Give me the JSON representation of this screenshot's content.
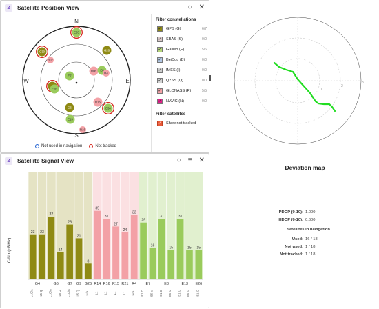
{
  "position_view": {
    "title": "Satellite Position View",
    "badge": "2",
    "compass": {
      "n": "N",
      "e": "E",
      "s": "S",
      "w": "W"
    },
    "legend": {
      "not_used": "Not used in navigation",
      "not_tracked": "Not tracked"
    },
    "satellites": [
      {
        "id": "E33",
        "type": "gal"
      },
      {
        "id": "G30",
        "type": "gps"
      },
      {
        "id": "G28",
        "type": "gps"
      },
      {
        "id": "R07",
        "type": "glo"
      },
      {
        "id": "R06",
        "type": "glo"
      },
      {
        "id": "E7",
        "type": "gal"
      },
      {
        "id": "E8",
        "type": "gal"
      },
      {
        "id": "R4",
        "type": "glo"
      },
      {
        "id": "G",
        "type": "gps"
      },
      {
        "id": "E26",
        "type": "gal"
      },
      {
        "id": "R15",
        "type": "glo"
      },
      {
        "id": "G6",
        "type": "gps"
      },
      {
        "id": "E30",
        "type": "gal"
      },
      {
        "id": "E13",
        "type": "gal"
      },
      {
        "id": "R16",
        "type": "glo"
      }
    ]
  },
  "filters": {
    "constellations_title": "Filter constellations",
    "items": [
      {
        "label": "GPS (G)",
        "count": "6/7",
        "color": "#8f8a14",
        "checked": true
      },
      {
        "label": "SBAS (S)",
        "count": "0/0",
        "color": "#d9c8c8",
        "checked": true
      },
      {
        "label": "Galileo (E)",
        "count": "5/6",
        "color": "#b6d67a",
        "checked": true
      },
      {
        "label": "BeiDou (B)",
        "count": "0/0",
        "color": "#b3c9e6",
        "checked": true
      },
      {
        "label": "IMES (I)",
        "count": "0/0",
        "color": "#cfcfcf",
        "checked": true
      },
      {
        "label": "QZSS (Q)",
        "count": "0/0",
        "color": "#d4d4d4",
        "checked": true
      },
      {
        "label": "GLONASS (R)",
        "count": "5/5",
        "color": "#f4a3a8",
        "checked": true
      },
      {
        "label": "NAVIC (N)",
        "count": "0/0",
        "color": "#e0218a",
        "checked": true
      }
    ],
    "satellites_title": "Filter satellites",
    "show_not_tracked": "Show not tracked"
  },
  "signal_view": {
    "title": "Satellite Signal View",
    "badge": "2",
    "ylabel": "C/No (dBHz)"
  },
  "chart_data": {
    "type": "bar",
    "ylim": [
      0,
      55
    ],
    "ylabel": "C/No (dBHz)",
    "groups": [
      {
        "name": "G4",
        "color": "gps"
      },
      {
        "name": "G6",
        "color": "gps"
      },
      {
        "name": "G7",
        "color": "gps"
      },
      {
        "name": "G9",
        "color": "gps"
      },
      {
        "name": "G26",
        "color": "gps"
      },
      {
        "name": "R14",
        "color": "glo"
      },
      {
        "name": "R16",
        "color": "glo"
      },
      {
        "name": "R15",
        "color": "glo"
      },
      {
        "name": "R21",
        "color": "glo"
      },
      {
        "name": "R4",
        "color": "glo"
      },
      {
        "name": "E7",
        "color": "gal"
      },
      {
        "name": "E8",
        "color": "gal"
      },
      {
        "name": "E13",
        "color": "gal"
      },
      {
        "name": "E26",
        "color": "gal"
      }
    ],
    "bars": [
      {
        "value": 23,
        "signal": "L1C/A",
        "group": "G4",
        "type": "gps"
      },
      {
        "value": 23,
        "signal": "L5 Q",
        "group": "G4",
        "type": "gps"
      },
      {
        "value": 32,
        "signal": "L1C/A",
        "group": "G6",
        "type": "gps"
      },
      {
        "value": 14,
        "signal": "L5 Q",
        "group": "G6",
        "type": "gps"
      },
      {
        "value": 28,
        "signal": "L1C/A",
        "group": "G7",
        "type": "gps"
      },
      {
        "value": 21,
        "signal": "L5 Q",
        "group": "G9",
        "type": "gps"
      },
      {
        "value": 8,
        "signal": "N/A",
        "group": "G26",
        "type": "gps"
      },
      {
        "value": 35,
        "signal": "L1",
        "group": "R14",
        "type": "glo"
      },
      {
        "value": 31,
        "signal": "L1",
        "group": "R16",
        "type": "glo"
      },
      {
        "value": 27,
        "signal": "L1",
        "group": "R15",
        "type": "glo"
      },
      {
        "value": 24,
        "signal": "L1",
        "group": "R21",
        "type": "glo"
      },
      {
        "value": 33,
        "signal": "N/A",
        "group": "R4",
        "type": "glo"
      },
      {
        "value": 29,
        "signal": "E1 C",
        "group": "E7",
        "type": "gal"
      },
      {
        "value": 16,
        "signal": "E5 aI",
        "group": "E7",
        "type": "gal"
      },
      {
        "value": 31,
        "signal": "E1 C",
        "group": "E8",
        "type": "gal"
      },
      {
        "value": 15,
        "signal": "E5 aI",
        "group": "E8",
        "type": "gal"
      },
      {
        "value": 31,
        "signal": "E1 C",
        "group": "E13",
        "type": "gal"
      },
      {
        "value": 15,
        "signal": "E5 aI",
        "group": "E13",
        "type": "gal"
      },
      {
        "value": 15,
        "signal": "E1 C",
        "group": "E26",
        "type": "gal"
      }
    ]
  },
  "deviation": {
    "title": "Deviation map",
    "ring_labels": [
      "1",
      "2",
      "3"
    ]
  },
  "stats": {
    "pdop_label": "PDOP (0-10):",
    "pdop": "1.000",
    "hdop_label": "HDOP (0-10):",
    "hdop": "0.600",
    "nav_title": "Satellites in navigation",
    "used_label": "Used:",
    "used": "16 / 18",
    "not_used_label": "Not used:",
    "not_used": "1 / 18",
    "not_tracked_label": "Not tracked:",
    "not_tracked": "1 / 18"
  },
  "colors": {
    "gps": "#8f8a14",
    "gal": "#9acb5c",
    "glo": "#f3a1a6",
    "gps_bg": "#e5e3c4",
    "gal_bg": "#e1f0cf",
    "glo_bg": "#fbe0e2",
    "deviation_line": "#22dd22"
  }
}
